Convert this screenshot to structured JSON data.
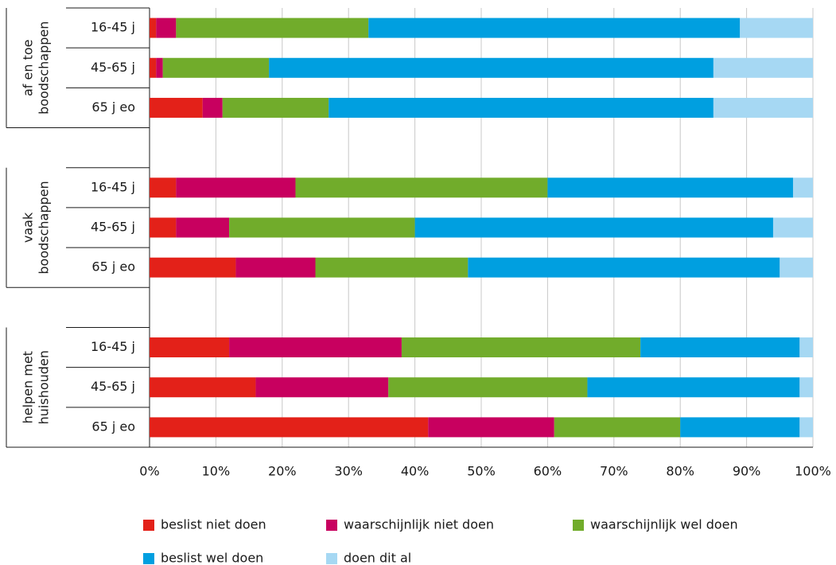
{
  "chart_data": {
    "type": "stacked-bar-horizontal",
    "groups": [
      {
        "label": [
          "af en toe",
          "boodschappen"
        ],
        "categories": [
          "16-45 j",
          "45-65 j",
          "65 j eo"
        ]
      },
      {
        "label": [
          "vaak",
          "boodschappen"
        ],
        "categories": [
          "16-45 j",
          "45-65 j",
          "65 j eo"
        ]
      },
      {
        "label": [
          "helpen met",
          "huishouden"
        ],
        "categories": [
          "16-45 j",
          "45-65 j",
          "65 j eo"
        ]
      }
    ],
    "series": [
      {
        "name": "beslist niet doen",
        "color": "#e32119",
        "values": [
          1,
          1,
          8,
          4,
          4,
          13,
          12,
          16,
          42
        ]
      },
      {
        "name": "waarschijnlijk niet doen",
        "color": "#c8005f",
        "values": [
          3,
          1,
          3,
          18,
          8,
          12,
          26,
          20,
          19
        ]
      },
      {
        "name": "waarschijnlijk wel doen",
        "color": "#71ac2b",
        "values": [
          29,
          16,
          16,
          38,
          28,
          23,
          36,
          30,
          19
        ]
      },
      {
        "name": "beslist wel doen",
        "color": "#009fe0",
        "values": [
          56,
          67,
          58,
          37,
          54,
          47,
          24,
          32,
          18
        ]
      },
      {
        "name": "doen dit al",
        "color": "#a6d8f3",
        "values": [
          11,
          15,
          15,
          3,
          6,
          5,
          2,
          2,
          2
        ]
      }
    ],
    "xlim": [
      0,
      100
    ],
    "xticks": [
      {
        "value": 0,
        "label": "0%"
      },
      {
        "value": 10,
        "label": "10%"
      },
      {
        "value": 20,
        "label": "20%"
      },
      {
        "value": 30,
        "label": "30%"
      },
      {
        "value": 40,
        "label": "40%"
      },
      {
        "value": 50,
        "label": "50%"
      },
      {
        "value": 60,
        "label": "60%"
      },
      {
        "value": 70,
        "label": "70%"
      },
      {
        "value": 80,
        "label": "80%"
      },
      {
        "value": 90,
        "label": "90%"
      },
      {
        "value": 100,
        "label": "100%"
      }
    ],
    "grid": true
  }
}
